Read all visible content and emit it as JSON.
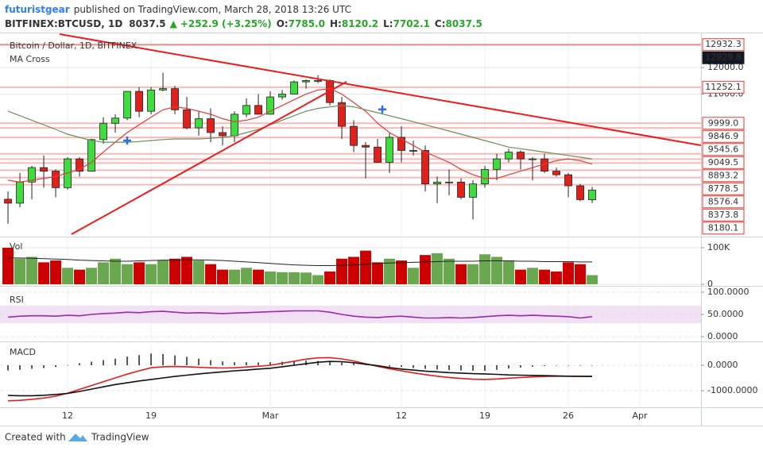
{
  "header": {
    "user": "futuristgear",
    "published": "published on TradingView.com, March 28, 2018 13:26 UTC",
    "symbol": "BITFINEX:BTCUSD, 1D",
    "last": "8037.5",
    "change": "+252.9 (+3.25%)",
    "ohlc": [
      {
        "label": "O:",
        "value": "7785.0"
      },
      {
        "label": "H:",
        "value": "8120.2"
      },
      {
        "label": "L:",
        "value": "7702.1"
      },
      {
        "label": "C:",
        "value": "8037.5"
      }
    ]
  },
  "chart_data": [
    {
      "type": "candlestick",
      "title": "Bitcoin / Dollar, 1D, BITFINEX",
      "subtitle": "MA Cross",
      "log": true,
      "grid": true,
      "xlim": [
        -0.67,
        58.13
      ],
      "xticks": [
        {
          "value": 5,
          "label": "12"
        },
        {
          "value": 12,
          "label": "19"
        },
        {
          "value": 22,
          "label": "Mar"
        },
        {
          "value": 33,
          "label": "12"
        },
        {
          "value": 40,
          "label": "19"
        },
        {
          "value": 47,
          "label": "26"
        },
        {
          "value": 53,
          "label": "Apr"
        }
      ],
      "ylim": [
        6920,
        13350
      ],
      "yticks": [
        {
          "value": 12000,
          "label": "12000.0"
        },
        {
          "value": 11000,
          "label": "11000.0"
        }
      ],
      "up_color": "#3fdc3f",
      "down_color": "#e0201b",
      "open": [
        7800,
        7700,
        8250,
        8650,
        8550,
        8100,
        8900,
        8550,
        9480,
        10000,
        10170,
        11100,
        10400,
        11150,
        11200,
        10450,
        9850,
        10150,
        9700,
        9600,
        10300,
        10600,
        10300,
        10900,
        11000,
        11450,
        11500,
        11500,
        10700,
        9900,
        9300,
        9250,
        8800,
        9550,
        9150,
        9150,
        8200,
        8250,
        8250,
        7850,
        8200,
        8600,
        8900,
        9100,
        8900,
        8900,
        8550,
        8450,
        8150,
        7785
      ],
      "high": [
        8000,
        8500,
        8700,
        9000,
        8600,
        8950,
        8950,
        9500,
        10200,
        10300,
        11100,
        11250,
        11250,
        11800,
        11300,
        10900,
        10400,
        10500,
        9900,
        10400,
        10850,
        11000,
        11100,
        11150,
        11500,
        11550,
        11700,
        11550,
        10900,
        10100,
        9400,
        9500,
        9700,
        9900,
        9450,
        9300,
        8400,
        8600,
        8350,
        8300,
        8700,
        9050,
        9200,
        9150,
        8950,
        9050,
        8650,
        8500,
        8200,
        8120.2
      ],
      "low": [
        7200,
        7600,
        7800,
        8100,
        7850,
        8050,
        8400,
        8550,
        9350,
        9700,
        10100,
        10200,
        10300,
        11100,
        10300,
        9800,
        9600,
        9400,
        9300,
        9400,
        10200,
        10300,
        10300,
        10800,
        11000,
        11200,
        11400,
        10600,
        9500,
        9100,
        8350,
        8800,
        8500,
        8800,
        9000,
        8000,
        7700,
        7900,
        7800,
        7300,
        8100,
        8300,
        8800,
        8600,
        8300,
        8500,
        8400,
        7850,
        7750,
        7702.1
      ],
      "close": [
        7700,
        8250,
        8650,
        8550,
        8100,
        8900,
        8550,
        9480,
        10000,
        10170,
        11100,
        10400,
        11150,
        11200,
        10450,
        9850,
        10150,
        9700,
        9600,
        10300,
        10600,
        10300,
        10900,
        11000,
        11450,
        11500,
        11500,
        10700,
        9900,
        9300,
        9250,
        8800,
        9550,
        9150,
        9150,
        8200,
        8250,
        8250,
        7850,
        8200,
        8600,
        8900,
        9100,
        8900,
        8900,
        8550,
        8450,
        8150,
        7790,
        8037.5
      ],
      "series": [
        {
          "color": "#e53935",
          "values": [
            8300,
            8250,
            8300,
            8350,
            8400,
            8500,
            8600,
            8800,
            9100,
            9400,
            9700,
            9950,
            10200,
            10450,
            10550,
            10500,
            10400,
            10300,
            10150,
            10050,
            10100,
            10200,
            10400,
            10600,
            10800,
            11000,
            11150,
            11200,
            11000,
            10700,
            10400,
            10000,
            9700,
            9500,
            9300,
            9100,
            8950,
            8800,
            8600,
            8450,
            8350,
            8350,
            8450,
            8550,
            8650,
            8750,
            8850,
            8900,
            8850,
            8750
          ]
        },
        {
          "color": "#6b8e5a",
          "values": [
            10400,
            10250,
            10100,
            9950,
            9800,
            9650,
            9550,
            9450,
            9400,
            9400,
            9400,
            9420,
            9450,
            9480,
            9500,
            9500,
            9500,
            9520,
            9550,
            9600,
            9700,
            9800,
            9950,
            10100,
            10250,
            10400,
            10500,
            10550,
            10600,
            10550,
            10450,
            10350,
            10250,
            10150,
            10050,
            9950,
            9850,
            9750,
            9650,
            9550,
            9450,
            9350,
            9250,
            9200,
            9150,
            9100,
            9050,
            9000,
            8950,
            8900
          ]
        }
      ],
      "crosses": [
        {
          "x": 10,
          "y": 9450
        },
        {
          "x": 31.4,
          "y": 10466
        }
      ],
      "cross_color": "#2f6fd6",
      "level_color": "#e53935",
      "levels": [
        {
          "value": 12932.3,
          "label": "12932.3"
        },
        {
          "value": 12929.8,
          "label": "12929.8"
        },
        {
          "value": 11252.1,
          "label": "11252.1"
        },
        {
          "value": 9999.0,
          "label": "9999.0"
        },
        {
          "value": 9846.9,
          "label": "9846.9"
        },
        {
          "value": 9545.6,
          "label": "9545.6"
        },
        {
          "value": 9049.5,
          "label": "9049.5"
        },
        {
          "value": 8893.2,
          "label": "8893.2"
        },
        {
          "value": 8778.5,
          "label": "8778.5"
        },
        {
          "value": 8576.4,
          "label": "8576.4"
        },
        {
          "value": 8373.8,
          "label": "8373.8"
        },
        {
          "value": 8180.1,
          "label": "8180.1"
        }
      ]
    },
    {
      "type": "bar",
      "title": "Vol",
      "ylim": [
        0,
        126000
      ],
      "yticks": [
        {
          "value": 100000,
          "label": "100K"
        },
        0
      ],
      "up_color": "#6aa84f",
      "down_color": "#cc0000",
      "values": [
        100000,
        70000,
        75000,
        60000,
        65000,
        45000,
        40000,
        45000,
        60000,
        70000,
        55000,
        60000,
        55000,
        65000,
        70000,
        75000,
        65000,
        55000,
        40000,
        40000,
        45000,
        40000,
        35000,
        33000,
        33000,
        32000,
        25000,
        35000,
        70000,
        75000,
        92000,
        60000,
        70000,
        65000,
        45000,
        80000,
        85000,
        70000,
        55000,
        55000,
        82000,
        75000,
        65000,
        40000,
        45000,
        40000,
        35000,
        60000,
        55000,
        25000
      ],
      "series": [
        {
          "color": "#222222",
          "values": [
            72000,
            72000,
            71000,
            70000,
            69000,
            68000,
            66000,
            65000,
            64000,
            63000,
            63000,
            64000,
            65000,
            66000,
            66000,
            67000,
            67000,
            66000,
            65000,
            63000,
            61000,
            59000,
            57000,
            55000,
            53000,
            52000,
            51000,
            51000,
            52000,
            53000,
            55000,
            57000,
            58000,
            59000,
            60000,
            61000,
            62000,
            63000,
            63000,
            63000,
            64000,
            64000,
            64000,
            63000,
            63000,
            62000,
            62000,
            62000,
            61000,
            61000
          ]
        }
      ]
    },
    {
      "type": "line",
      "title": "RSI",
      "ylim": [
        -7.1,
        110.7
      ],
      "yticks": [
        {
          "value": 100,
          "label": "100.0000"
        },
        {
          "value": 50,
          "label": "50.0000"
        },
        {
          "value": 0,
          "label": "0.0000"
        }
      ],
      "band": [
        30,
        70
      ],
      "band_color": "#e9d5f0",
      "series": [
        {
          "color": "#9c27b0",
          "values": [
            44,
            46,
            47,
            47,
            46,
            48,
            47,
            50,
            52,
            53,
            55,
            54,
            56,
            57,
            55,
            53,
            54,
            53,
            52,
            53,
            54,
            55,
            56,
            57,
            58,
            58,
            58,
            55,
            50,
            46,
            44,
            43,
            45,
            46,
            44,
            42,
            42,
            43,
            42,
            43,
            45,
            47,
            48,
            47,
            48,
            47,
            46,
            45,
            42,
            45
          ]
        }
      ]
    },
    {
      "type": "line",
      "title": "MACD",
      "ylim": [
        -1625,
        875
      ],
      "yticks": [
        {
          "value": 0,
          "label": "0.0000"
        },
        {
          "value": -1000,
          "label": "-1000.0000"
        }
      ],
      "histogram": [
        -210,
        -180,
        -140,
        -110,
        -70,
        10,
        80,
        140,
        200,
        260,
        340,
        400,
        460,
        440,
        390,
        330,
        260,
        200,
        150,
        120,
        120,
        110,
        120,
        140,
        160,
        180,
        170,
        150,
        110,
        70,
        20,
        -20,
        -50,
        -70,
        -110,
        -140,
        -170,
        -190,
        -210,
        -220,
        -220,
        -180,
        -130,
        -90,
        -60,
        -30,
        -10,
        0,
        0,
        0
      ],
      "histogram_color": "#222222",
      "series": [
        {
          "color": "#e01e1e",
          "values": [
            -1400,
            -1380,
            -1340,
            -1290,
            -1220,
            -1100,
            -950,
            -800,
            -650,
            -500,
            -350,
            -220,
            -100,
            -60,
            -50,
            -60,
            -80,
            -100,
            -110,
            -100,
            -70,
            -40,
            0,
            80,
            160,
            240,
            290,
            300,
            250,
            170,
            60,
            -40,
            -140,
            -220,
            -300,
            -370,
            -430,
            -480,
            -520,
            -550,
            -560,
            -540,
            -510,
            -480,
            -460,
            -440,
            -430,
            -430,
            -435,
            -440
          ]
        },
        {
          "color": "#111111",
          "values": [
            -1190,
            -1200,
            -1200,
            -1180,
            -1150,
            -1110,
            -1030,
            -940,
            -850,
            -760,
            -690,
            -620,
            -560,
            -500,
            -440,
            -390,
            -340,
            -300,
            -260,
            -220,
            -190,
            -150,
            -120,
            -60,
            0,
            60,
            120,
            150,
            140,
            100,
            40,
            -20,
            -90,
            -150,
            -190,
            -230,
            -260,
            -290,
            -310,
            -330,
            -340,
            -360,
            -380,
            -390,
            -400,
            -410,
            -420,
            -430,
            -435,
            -440
          ]
        }
      ]
    }
  ],
  "footer": {
    "created": "Created with",
    "brand": "TradingView"
  }
}
